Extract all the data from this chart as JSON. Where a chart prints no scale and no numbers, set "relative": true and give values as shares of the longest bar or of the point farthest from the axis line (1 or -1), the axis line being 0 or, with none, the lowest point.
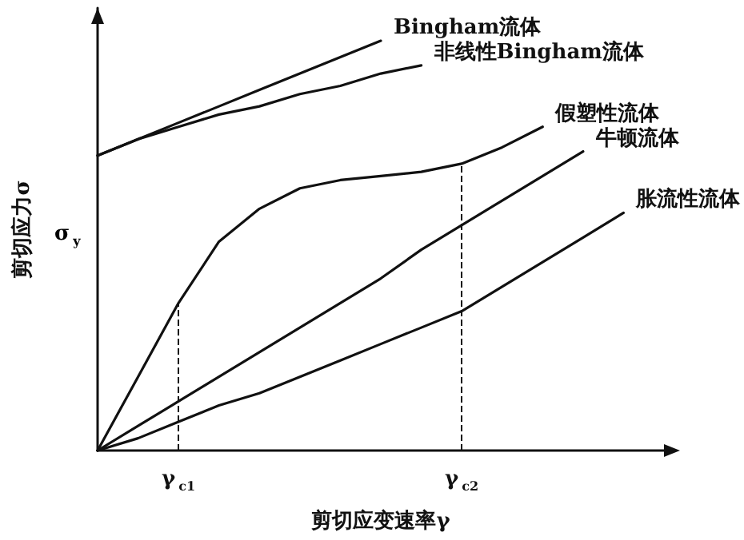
{
  "chart_data": {
    "type": "line",
    "relative": true,
    "xlabel": "剪切应变速率γ",
    "ylabel": "剪切应力σ",
    "categories": [
      null,
      null,
      "γ$_{c1}$",
      null,
      null,
      null,
      null,
      null,
      null,
      "γ$_{c2}$",
      null,
      null,
      null,
      null,
      null
    ],
    "annotations": [
      "σ$_{y}$"
    ],
    "ref_lines": [
      {
        "axis": "x",
        "value": "γ$_{c1}$",
        "line_style": "dashed"
      },
      {
        "axis": "x",
        "value": "γ$_{c2}$",
        "line_style": "dashed"
      }
    ],
    "marker": "none",
    "line_style": "solid",
    "legend": false,
    "series": [
      {
        "name": "Bingham流体",
        "color": "#111111",
        "values": [
          0.72,
          0.76,
          0.8,
          0.84,
          0.88,
          0.92,
          0.96,
          1.0,
          null,
          null,
          null,
          null,
          null,
          null,
          null
        ]
      },
      {
        "name": "非线性Bingham流体",
        "color": "#111111",
        "values": [
          0.72,
          0.76,
          0.79,
          0.82,
          0.84,
          0.87,
          0.89,
          0.92,
          0.94,
          null,
          null,
          null,
          null,
          null,
          null
        ]
      },
      {
        "name": "假塑性流体",
        "color": "#111111",
        "values": [
          0,
          0.18,
          0.36,
          0.51,
          0.59,
          0.64,
          0.66,
          0.67,
          0.68,
          0.7,
          0.74,
          0.79,
          null,
          null,
          null
        ]
      },
      {
        "name": "牛顿流体",
        "color": "#111111",
        "values": [
          0,
          0.06,
          0.12,
          0.18,
          0.24,
          0.3,
          0.36,
          0.42,
          0.49,
          0.55,
          0.61,
          0.67,
          0.73,
          null,
          null
        ]
      },
      {
        "name": "胀流性流体",
        "color": "#111111",
        "values": [
          0,
          0.03,
          0.07,
          0.11,
          0.14,
          0.18,
          0.22,
          0.26,
          0.3,
          0.34,
          0.4,
          0.46,
          0.52,
          0.58,
          null
        ]
      }
    ]
  }
}
